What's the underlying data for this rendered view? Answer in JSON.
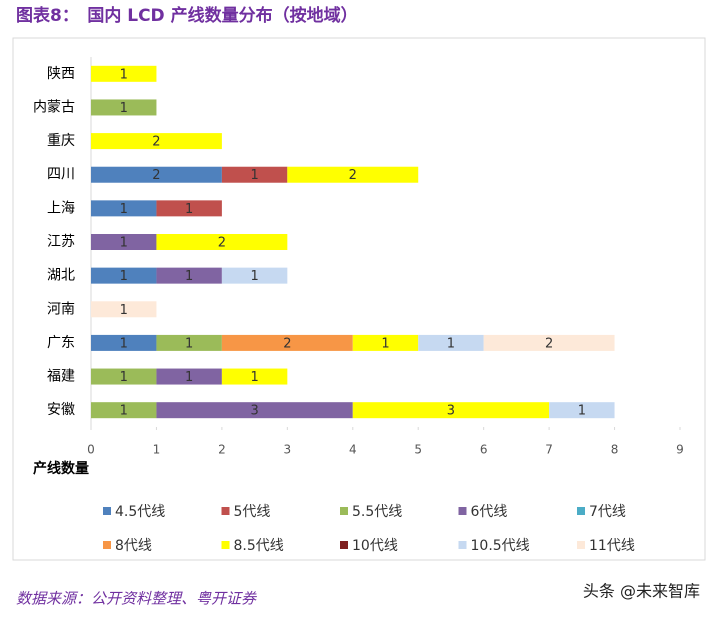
{
  "chart_data": {
    "type": "stacked-barh",
    "title": "图表8：　国内 LCD 产线数量分布（按地域）",
    "x_label": "产线数量",
    "categories": [
      "陕西",
      "内蒙古",
      "重庆",
      "四川",
      "上海",
      "江苏",
      "湖北",
      "河南",
      "广东",
      "福建",
      "安徽"
    ],
    "series": [
      {
        "name": "4.5代线",
        "color": "#4f81bd",
        "values": [
          null,
          null,
          null,
          2,
          1,
          null,
          1,
          null,
          1,
          null,
          null
        ]
      },
      {
        "name": "5代线",
        "color": "#c0504d",
        "values": [
          null,
          null,
          null,
          1,
          1,
          null,
          null,
          null,
          null,
          null,
          null
        ]
      },
      {
        "name": "5.5代线",
        "color": "#9bbb59",
        "values": [
          null,
          1,
          null,
          null,
          null,
          null,
          null,
          null,
          1,
          1,
          1
        ]
      },
      {
        "name": "6代线",
        "color": "#8064a2",
        "values": [
          null,
          null,
          null,
          null,
          null,
          1,
          1,
          null,
          null,
          1,
          3
        ]
      },
      {
        "name": "7代线",
        "color": "#4bacc6",
        "values": [
          null,
          null,
          null,
          null,
          null,
          null,
          null,
          null,
          null,
          null,
          null
        ]
      },
      {
        "name": "8代线",
        "color": "#f79646",
        "values": [
          null,
          null,
          null,
          null,
          null,
          null,
          null,
          null,
          2,
          null,
          null
        ]
      },
      {
        "name": "8.5代线",
        "color": "#ffff00",
        "values": [
          1,
          null,
          2,
          2,
          null,
          2,
          null,
          null,
          1,
          1,
          3
        ]
      },
      {
        "name": "10代线",
        "color": "#7f1f1f",
        "values": [
          null,
          null,
          null,
          null,
          null,
          null,
          null,
          null,
          null,
          null,
          null
        ]
      },
      {
        "name": "10.5代线",
        "color": "#c6d9f1",
        "values": [
          null,
          null,
          null,
          null,
          null,
          null,
          1,
          null,
          1,
          null,
          1
        ]
      },
      {
        "name": "11代线",
        "color": "#fde9d9",
        "values": [
          null,
          null,
          null,
          null,
          null,
          null,
          null,
          1,
          2,
          null,
          null
        ]
      }
    ],
    "xlim": [
      0,
      9
    ],
    "xticks": [
      0,
      1,
      2,
      3,
      4,
      5,
      6,
      7,
      8,
      9
    ],
    "grid": false
  },
  "source": "数据来源：公开资料整理、粤开证券",
  "watermark": "头条 @未来智库"
}
